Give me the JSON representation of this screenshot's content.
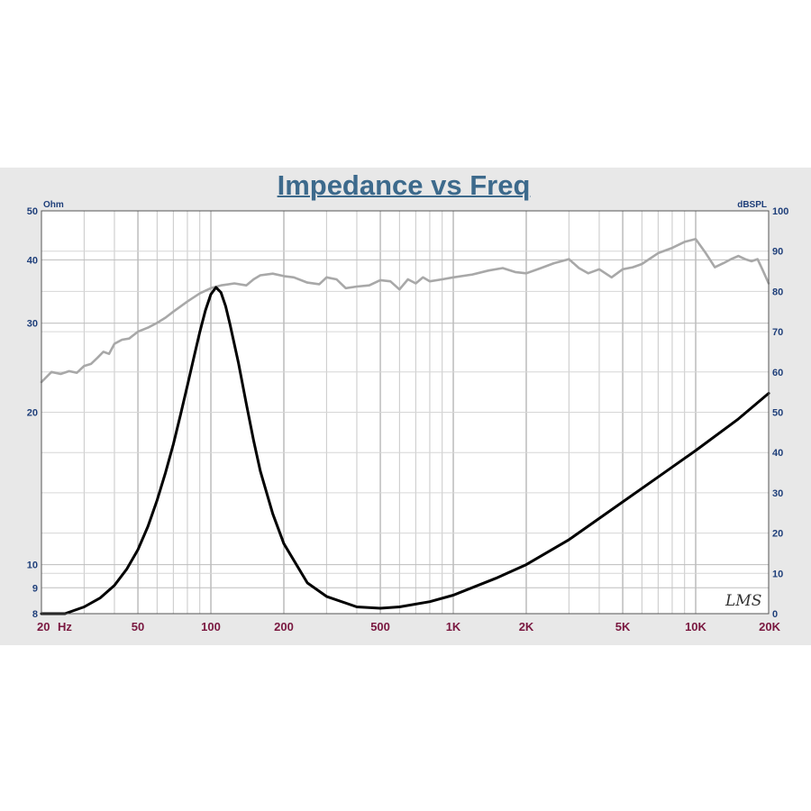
{
  "chart_data": {
    "type": "line",
    "title": "Impedance vs Freq",
    "x_scale": "log",
    "xlim": [
      20,
      20000
    ],
    "x_ticks": [
      {
        "value": 20,
        "label": "20"
      },
      {
        "value": 50,
        "label": "50"
      },
      {
        "value": 100,
        "label": "100"
      },
      {
        "value": 200,
        "label": "200"
      },
      {
        "value": 500,
        "label": "500"
      },
      {
        "value": 1000,
        "label": "1K"
      },
      {
        "value": 2000,
        "label": "2K"
      },
      {
        "value": 5000,
        "label": "5K"
      },
      {
        "value": 10000,
        "label": "10K"
      },
      {
        "value": 20000,
        "label": "20K"
      }
    ],
    "x_unit_label": "Hz",
    "y_left": {
      "unit": "Ohm",
      "scale": "log",
      "range": [
        8,
        50
      ],
      "ticks": [
        {
          "value": 8,
          "label": "8"
        },
        {
          "value": 9,
          "label": "9"
        },
        {
          "value": 10,
          "label": "10"
        },
        {
          "value": 20,
          "label": "20"
        },
        {
          "value": 30,
          "label": "30"
        },
        {
          "value": 40,
          "label": "40"
        },
        {
          "value": 50,
          "label": "50"
        }
      ]
    },
    "y_right": {
      "unit": "dBSPL",
      "scale": "linear",
      "range": [
        0,
        100
      ],
      "ticks": [
        {
          "value": 0,
          "label": "0"
        },
        {
          "value": 10,
          "label": "10"
        },
        {
          "value": 20,
          "label": "20"
        },
        {
          "value": 30,
          "label": "30"
        },
        {
          "value": 40,
          "label": "40"
        },
        {
          "value": 50,
          "label": "50"
        },
        {
          "value": 60,
          "label": "60"
        },
        {
          "value": 70,
          "label": "70"
        },
        {
          "value": 80,
          "label": "80"
        },
        {
          "value": 90,
          "label": "90"
        },
        {
          "value": 100,
          "label": "100"
        }
      ]
    },
    "grid": true,
    "series": [
      {
        "axis": "left",
        "color": "#000000",
        "points": [
          [
            20,
            8.0
          ],
          [
            25,
            8.0
          ],
          [
            30,
            8.25
          ],
          [
            35,
            8.6
          ],
          [
            40,
            9.1
          ],
          [
            45,
            9.8
          ],
          [
            50,
            10.7
          ],
          [
            55,
            11.9
          ],
          [
            60,
            13.4
          ],
          [
            65,
            15.2
          ],
          [
            70,
            17.3
          ],
          [
            75,
            19.8
          ],
          [
            80,
            22.6
          ],
          [
            85,
            25.6
          ],
          [
            90,
            28.8
          ],
          [
            95,
            31.8
          ],
          [
            100,
            34.2
          ],
          [
            105,
            35.3
          ],
          [
            110,
            34.5
          ],
          [
            115,
            32.4
          ],
          [
            120,
            29.8
          ],
          [
            130,
            25.0
          ],
          [
            140,
            20.8
          ],
          [
            150,
            17.6
          ],
          [
            160,
            15.3
          ],
          [
            180,
            12.6
          ],
          [
            200,
            11.0
          ],
          [
            250,
            9.2
          ],
          [
            300,
            8.65
          ],
          [
            400,
            8.25
          ],
          [
            500,
            8.2
          ],
          [
            600,
            8.25
          ],
          [
            800,
            8.45
          ],
          [
            1000,
            8.7
          ],
          [
            1500,
            9.4
          ],
          [
            2000,
            10.0
          ],
          [
            3000,
            11.2
          ],
          [
            5000,
            13.3
          ],
          [
            7000,
            14.9
          ],
          [
            10000,
            16.8
          ],
          [
            15000,
            19.4
          ],
          [
            20000,
            21.8
          ]
        ]
      },
      {
        "axis": "right",
        "color": "#a8a8a8",
        "points": [
          [
            20,
            57.5
          ],
          [
            22,
            60
          ],
          [
            24,
            59.5
          ],
          [
            26,
            60.2
          ],
          [
            28,
            59.8
          ],
          [
            30,
            61.5
          ],
          [
            32,
            62
          ],
          [
            34,
            63.5
          ],
          [
            36,
            65
          ],
          [
            38,
            64.5
          ],
          [
            40,
            67
          ],
          [
            43,
            68
          ],
          [
            46,
            68.3
          ],
          [
            50,
            70
          ],
          [
            55,
            71
          ],
          [
            60,
            72.2
          ],
          [
            65,
            73.5
          ],
          [
            70,
            75
          ],
          [
            80,
            77.5
          ],
          [
            90,
            79.5
          ],
          [
            100,
            80.8
          ],
          [
            110,
            81.5
          ],
          [
            125,
            82
          ],
          [
            140,
            81.5
          ],
          [
            150,
            83
          ],
          [
            160,
            84
          ],
          [
            180,
            84.4
          ],
          [
            200,
            83.8
          ],
          [
            220,
            83.5
          ],
          [
            250,
            82.2
          ],
          [
            280,
            81.8
          ],
          [
            300,
            83.5
          ],
          [
            330,
            83
          ],
          [
            360,
            80.8
          ],
          [
            400,
            81.2
          ],
          [
            450,
            81.5
          ],
          [
            500,
            82.8
          ],
          [
            550,
            82.5
          ],
          [
            600,
            80.5
          ],
          [
            650,
            83
          ],
          [
            700,
            82
          ],
          [
            750,
            83.5
          ],
          [
            800,
            82.5
          ],
          [
            900,
            83
          ],
          [
            1000,
            83.5
          ],
          [
            1200,
            84.2
          ],
          [
            1400,
            85.2
          ],
          [
            1600,
            85.8
          ],
          [
            1800,
            84.8
          ],
          [
            2000,
            84.5
          ],
          [
            2300,
            85.8
          ],
          [
            2600,
            87
          ],
          [
            3000,
            88
          ],
          [
            3300,
            85.8
          ],
          [
            3600,
            84.5
          ],
          [
            4000,
            85.5
          ],
          [
            4500,
            83.5
          ],
          [
            5000,
            85.5
          ],
          [
            5500,
            86
          ],
          [
            6000,
            86.8
          ],
          [
            7000,
            89.5
          ],
          [
            8000,
            90.8
          ],
          [
            9000,
            92.3
          ],
          [
            10000,
            93
          ],
          [
            11000,
            89.5
          ],
          [
            12000,
            86
          ],
          [
            13000,
            87
          ],
          [
            14000,
            88
          ],
          [
            15000,
            88.8
          ],
          [
            16000,
            88
          ],
          [
            17000,
            87.5
          ],
          [
            18000,
            88
          ],
          [
            19000,
            85
          ],
          [
            20000,
            82
          ]
        ]
      }
    ],
    "watermark": "LMS"
  }
}
